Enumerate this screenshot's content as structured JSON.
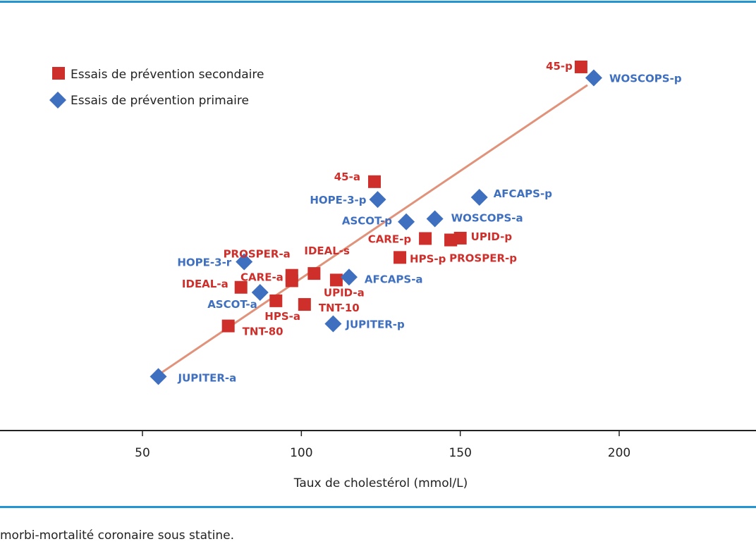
{
  "caption": "morbi-mortalité coronaire sous statine.",
  "colors": {
    "secondary": "#cf2f2b",
    "primary": "#3f6fbf",
    "trend": "#e0927a",
    "rule": "#2196d3"
  },
  "chart_data": {
    "type": "scatter",
    "xlabel": "Taux de cholestérol (mmol/L)",
    "ylabel": "",
    "x_ticks": [
      50,
      100,
      150,
      200
    ],
    "xlim": [
      6,
      246
    ],
    "legend": [
      {
        "name": "Essais de prévention secondaire",
        "marker": "square",
        "series": "secondary"
      },
      {
        "name": "Essais de prévention primaire",
        "marker": "diamond",
        "series": "primary"
      }
    ],
    "legend_position": "top-left",
    "grid": false,
    "trendline": {
      "x": [
        55,
        190
      ],
      "y": [
        0.1,
        8.05
      ]
    },
    "series": [
      {
        "key": "secondary",
        "name": "Essais de prévention secondaire",
        "points": [
          {
            "label": "45-p",
            "x": 188,
            "y": 8.55
          },
          {
            "label": "45-a",
            "x": 123,
            "y": 5.4
          },
          {
            "label": "CARE-p",
            "x": 139,
            "y": 3.84
          },
          {
            "label": "UPID-p",
            "x": 150,
            "y": 3.85
          },
          {
            "label": "",
            "x": 147,
            "y": 3.8
          },
          {
            "label": "HPS-p",
            "x": 131,
            "y": 3.32
          },
          {
            "label": "PROSPER-p",
            "x": 147,
            "y": 3.8
          },
          {
            "label": "IDEAL-s",
            "x": 104,
            "y": 2.88
          },
          {
            "label": "PROSPER-a",
            "x": 97,
            "y": 2.83
          },
          {
            "label": "CARE-a",
            "x": 97,
            "y": 2.68
          },
          {
            "label": "UPID-a",
            "x": 111,
            "y": 2.7
          },
          {
            "label": "IDEAL-a",
            "x": 81,
            "y": 2.5
          },
          {
            "label": "HPS-a",
            "x": 92,
            "y": 2.13
          },
          {
            "label": "TNT-10",
            "x": 101,
            "y": 2.03
          },
          {
            "label": "TNT-80",
            "x": 77,
            "y": 1.44
          }
        ]
      },
      {
        "key": "primary",
        "name": "Essais de prévention primaire",
        "points": [
          {
            "label": "WOSCOPS-p",
            "x": 192,
            "y": 8.25
          },
          {
            "label": "AFCAPS-p",
            "x": 156,
            "y": 4.97
          },
          {
            "label": "HOPE-3-p",
            "x": 124,
            "y": 4.91
          },
          {
            "label": "WOSCOPS-a",
            "x": 142,
            "y": 4.38
          },
          {
            "label": "ASCOT-p",
            "x": 133,
            "y": 4.3
          },
          {
            "label": "HOPE-3-r",
            "x": 82,
            "y": 3.2
          },
          {
            "label": "AFCAPS-a",
            "x": 115,
            "y": 2.78
          },
          {
            "label": "ASCOT-a",
            "x": 87,
            "y": 2.36
          },
          {
            "label": "JUPITER-p",
            "x": 110,
            "y": 1.5
          },
          {
            "label": "JUPITER-a",
            "x": 55,
            "y": 0.05
          }
        ]
      }
    ]
  }
}
